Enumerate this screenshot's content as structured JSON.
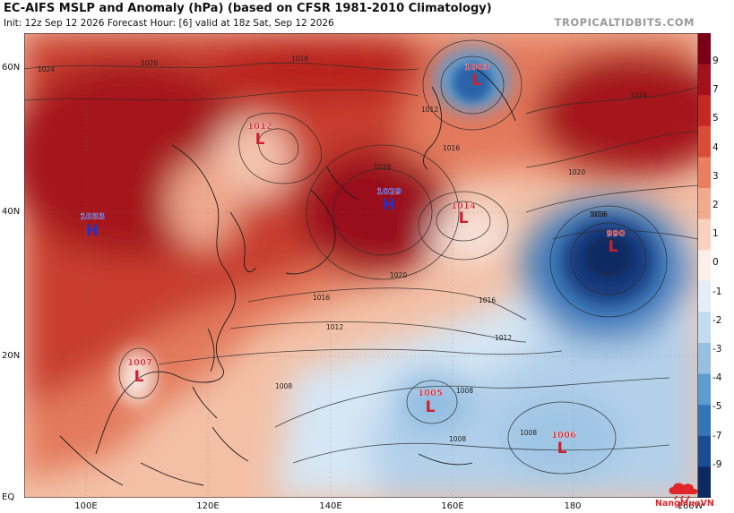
{
  "header": {
    "title": "EC-AIFS MSLP and Anomaly (hPa) (based on CFSR 1981-2010 Climatology)",
    "subtitle": "Init: 12z Sep 12 2026   Forecast Hour: [6]   valid at 18z Sat, Sep 12 2026",
    "brand": "TROPICALTIDBITS.COM"
  },
  "axes": {
    "lat_labels": [
      "60N",
      "40N",
      "20N",
      "EQ"
    ],
    "lon_labels": [
      "100E",
      "120E",
      "140E",
      "160E",
      "180",
      "160W"
    ]
  },
  "colorbar": {
    "labels": [
      "9",
      "7",
      "5",
      "4",
      "3",
      "2",
      "1",
      "0",
      "-1",
      "-2",
      "-3",
      "-4",
      "-5",
      "-7",
      "-9"
    ],
    "colors": [
      "#7a0018",
      "#a3121c",
      "#c52a22",
      "#d94d37",
      "#e87f5f",
      "#f2aa8c",
      "#f8d2bf",
      "#fbefe8",
      "#e4eef8",
      "#c3dbef",
      "#95c0e2",
      "#5e9bcf",
      "#3574b6",
      "#1a4c93",
      "#0b2a62"
    ]
  },
  "pressure_centers": [
    {
      "type": "H",
      "value": "1033",
      "kind": "high"
    },
    {
      "type": "L",
      "value": "1012",
      "kind": "low"
    },
    {
      "type": "L",
      "value": "1003",
      "kind": "low"
    },
    {
      "type": "H",
      "value": "1029",
      "kind": "high"
    },
    {
      "type": "L",
      "value": "1014",
      "kind": "low"
    },
    {
      "type": "L",
      "value": "990",
      "kind": "low"
    },
    {
      "type": "L",
      "value": "1007",
      "kind": "low"
    },
    {
      "type": "L",
      "value": "1005",
      "kind": "low"
    },
    {
      "type": "L",
      "value": "1006",
      "kind": "low"
    }
  ],
  "isobar_labels": [
    "1024",
    "1020",
    "1016",
    "1028",
    "1012",
    "1016",
    "1020",
    "1024",
    "1016",
    "1020",
    "1016",
    "1016",
    "1012",
    "1008",
    "1008",
    "1008",
    "1008",
    "1012",
    "1016"
  ],
  "colors": {
    "high_label": "#2432c8",
    "low_label": "#d0202e"
  },
  "logo": {
    "text": "NangMuaVN"
  }
}
